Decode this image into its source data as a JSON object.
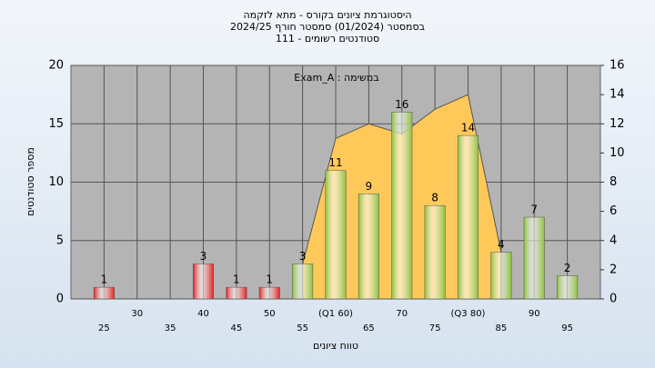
{
  "chart_data": {
    "type": "bar",
    "title": "היסטוגרמת ציונים בקורס - מתא לזקמה",
    "subtitle": "בסמסטר  (01/2024)  סמסטר חורף 2024/25",
    "subtitle2": "סטודנטים רשומים - 111",
    "annotation": "במשימה : Exam_A",
    "x_label": "טווח ציונים",
    "y_label": "מספר סטודנטים",
    "categories": [
      "25",
      "30",
      "35",
      "40",
      "45",
      "50",
      "55",
      "(Q1 60)",
      "65",
      "70",
      "75",
      "(Q3 80)",
      "85",
      "90",
      "95"
    ],
    "values": [
      1,
      0,
      0,
      3,
      1,
      1,
      3,
      11,
      9,
      16,
      8,
      14,
      4,
      7,
      2
    ],
    "colors": [
      "#e02020",
      "#e02020",
      "#e02020",
      "#e02020",
      "#e02020",
      "#e02020",
      "#8cbf3c",
      "#8cbf3c",
      "#8cbf3c",
      "#8cbf3c",
      "#8cbf3c",
      "#8cbf3c",
      "#8cbf3c",
      "#8cbf3c",
      "#8cbf3c"
    ],
    "area": {
      "values": [
        null,
        null,
        null,
        null,
        null,
        null,
        2.4,
        11,
        12,
        11.3,
        13,
        14,
        3.2,
        null,
        null
      ],
      "color": "#ffc95a",
      "axis": "y2"
    },
    "ylim": [
      0,
      20
    ],
    "yticks": [
      0,
      5,
      10,
      15,
      20
    ],
    "y2lim": [
      0,
      16
    ],
    "y2ticks": [
      0,
      2,
      4,
      6,
      8,
      10,
      12,
      14,
      16
    ],
    "grid": true
  }
}
